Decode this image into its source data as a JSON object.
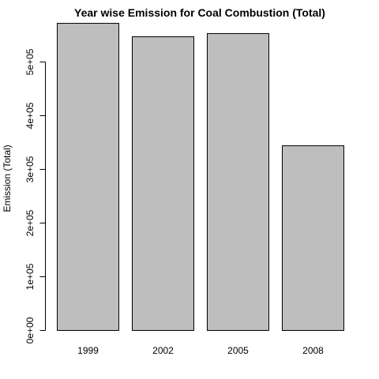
{
  "chart_data": {
    "type": "bar",
    "title": "Year wise Emission for Coal Combustion (Total)",
    "xlabel": "",
    "ylabel": "Emission (Total)",
    "categories": [
      "1999",
      "2002",
      "2005",
      "2008"
    ],
    "values": [
      572000,
      547000,
      553000,
      344000
    ],
    "ylim": [
      0,
      600000
    ],
    "yticks": [
      0,
      100000,
      200000,
      300000,
      400000,
      500000
    ],
    "ytick_labels": [
      "0e+00",
      "1e+05",
      "2e+05",
      "3e+05",
      "4e+05",
      "5e+05"
    ],
    "bar_fill": "#bebebe",
    "bar_stroke": "#000000",
    "grid": false,
    "legend": "none"
  }
}
